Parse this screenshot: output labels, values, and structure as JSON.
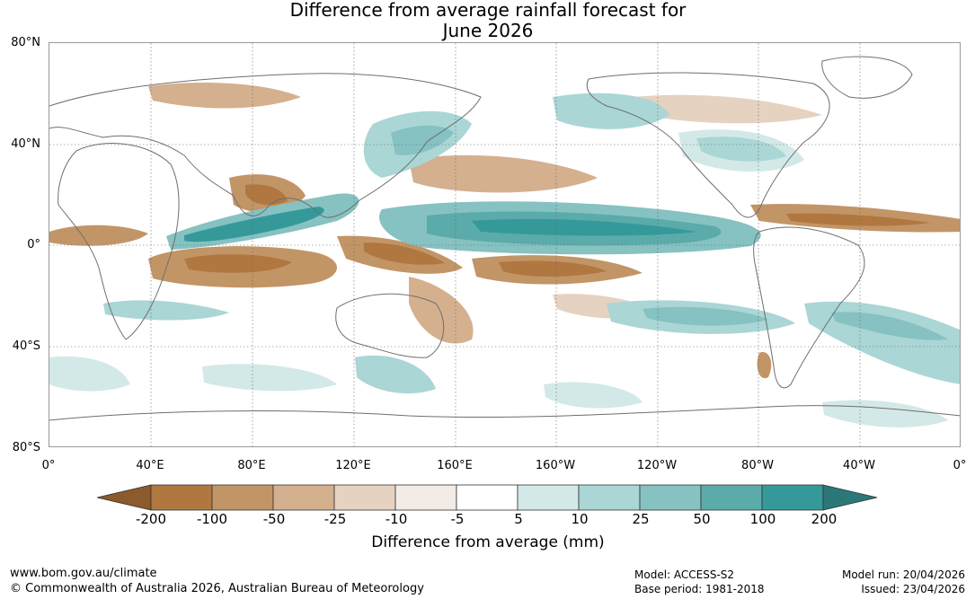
{
  "title": {
    "line1": "Difference from average rainfall forecast for",
    "line2": "June 2026"
  },
  "map": {
    "lat_labels": [
      "80°N",
      "40°N",
      "0°",
      "40°S",
      "80°S"
    ],
    "lon_labels": [
      "0°",
      "40°E",
      "80°E",
      "120°E",
      "160°E",
      "160°W",
      "120°W",
      "80°W",
      "40°W",
      "0°"
    ]
  },
  "colorbar": {
    "title": "Difference from average (mm)",
    "ticks": [
      "-200",
      "-100",
      "-50",
      "-25",
      "-10",
      "-5",
      "5",
      "10",
      "25",
      "50",
      "100",
      "200"
    ],
    "colors": [
      "#8c5a2b",
      "#b07840",
      "#c29566",
      "#d4b08f",
      "#e6d2c0",
      "#f2ebe6",
      "#ffffff",
      "#d3e9e8",
      "#aad6d5",
      "#85c2c1",
      "#5aabaa",
      "#35999a",
      "#2c7778"
    ]
  },
  "footer": {
    "url": "www.bom.gov.au/climate",
    "copyright": "© Commonwealth of Australia 2026, Australian Bureau of Meteorology",
    "model": "Model: ACCESS-S2",
    "base_period": "Base period: 1981-2018",
    "model_run": "Model run: 20/04/2026",
    "issued": "Issued: 23/04/2026"
  }
}
